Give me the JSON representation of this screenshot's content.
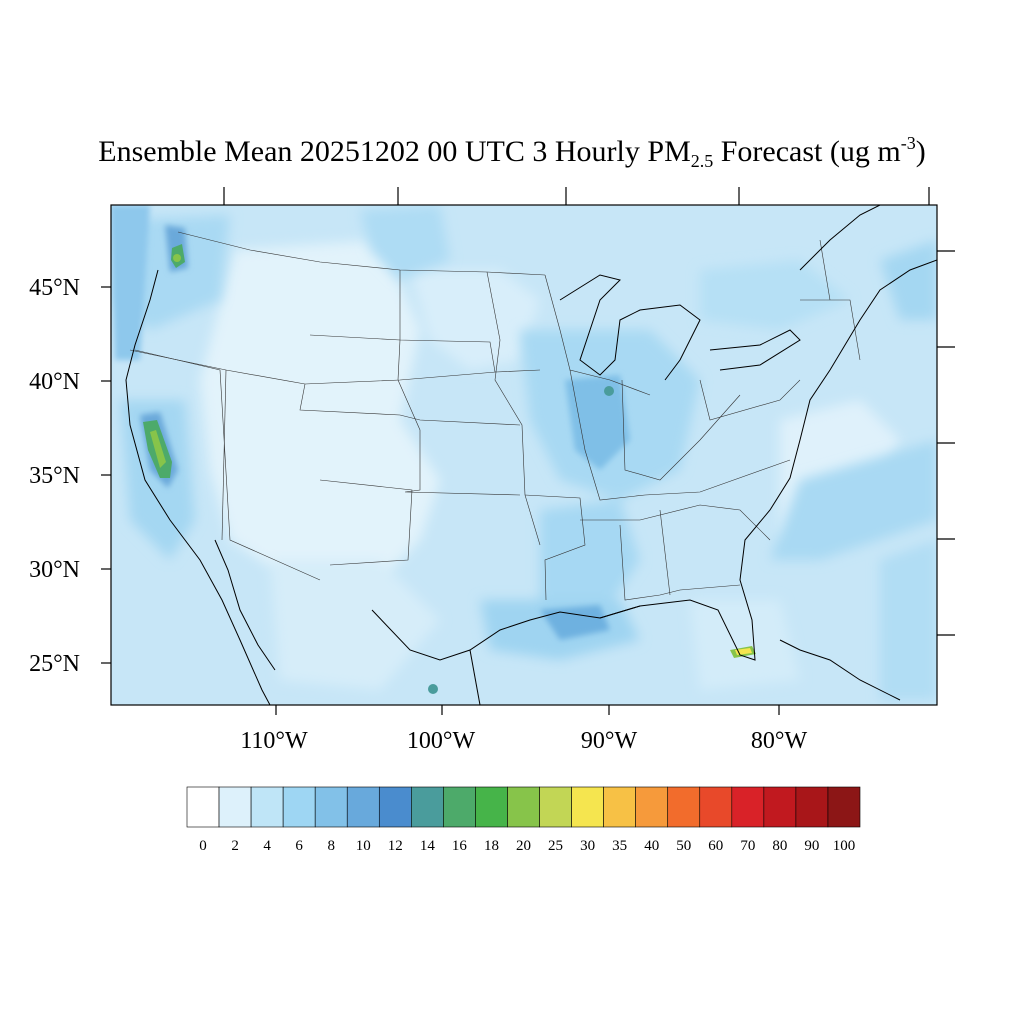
{
  "title": {
    "prefix": "Ensemble Mean 20251202 00 UTC 3 Hourly PM",
    "subscript": "2.5",
    "middle": " Forecast (ug m",
    "superscript": "-3",
    "suffix": ")"
  },
  "map": {
    "region": "Contiguous United States",
    "latitude_labels": [
      "45°N",
      "40°N",
      "35°N",
      "30°N",
      "25°N"
    ],
    "longitude_labels": [
      "110°W",
      "100°W",
      "90°W",
      "80°W"
    ],
    "background_color": "#c7e6f7",
    "hotspots": [
      {
        "name": "puget-sound",
        "level": "16-20"
      },
      {
        "name": "central-california",
        "level": "14-20"
      },
      {
        "name": "chicago",
        "level": "14-16"
      },
      {
        "name": "south-florida",
        "level": "25-30"
      },
      {
        "name": "northern-mexico",
        "level": "14-16"
      }
    ]
  },
  "colorbar": {
    "labels": [
      "0",
      "2",
      "4",
      "6",
      "8",
      "10",
      "12",
      "14",
      "16",
      "18",
      "20",
      "25",
      "30",
      "35",
      "40",
      "50",
      "60",
      "70",
      "80",
      "90",
      "100"
    ],
    "colors": [
      "#ffffff",
      "#ddf1fb",
      "#bfe5f7",
      "#9ed6f3",
      "#82c1e8",
      "#68a9dc",
      "#4a8cce",
      "#4a9c9c",
      "#4daa6a",
      "#46b449",
      "#87c44a",
      "#c2d655",
      "#f5e54f",
      "#f7c145",
      "#f69a3b",
      "#f26c2c",
      "#e8492a",
      "#d92228",
      "#c1191f",
      "#a81619",
      "#8c1616"
    ]
  }
}
